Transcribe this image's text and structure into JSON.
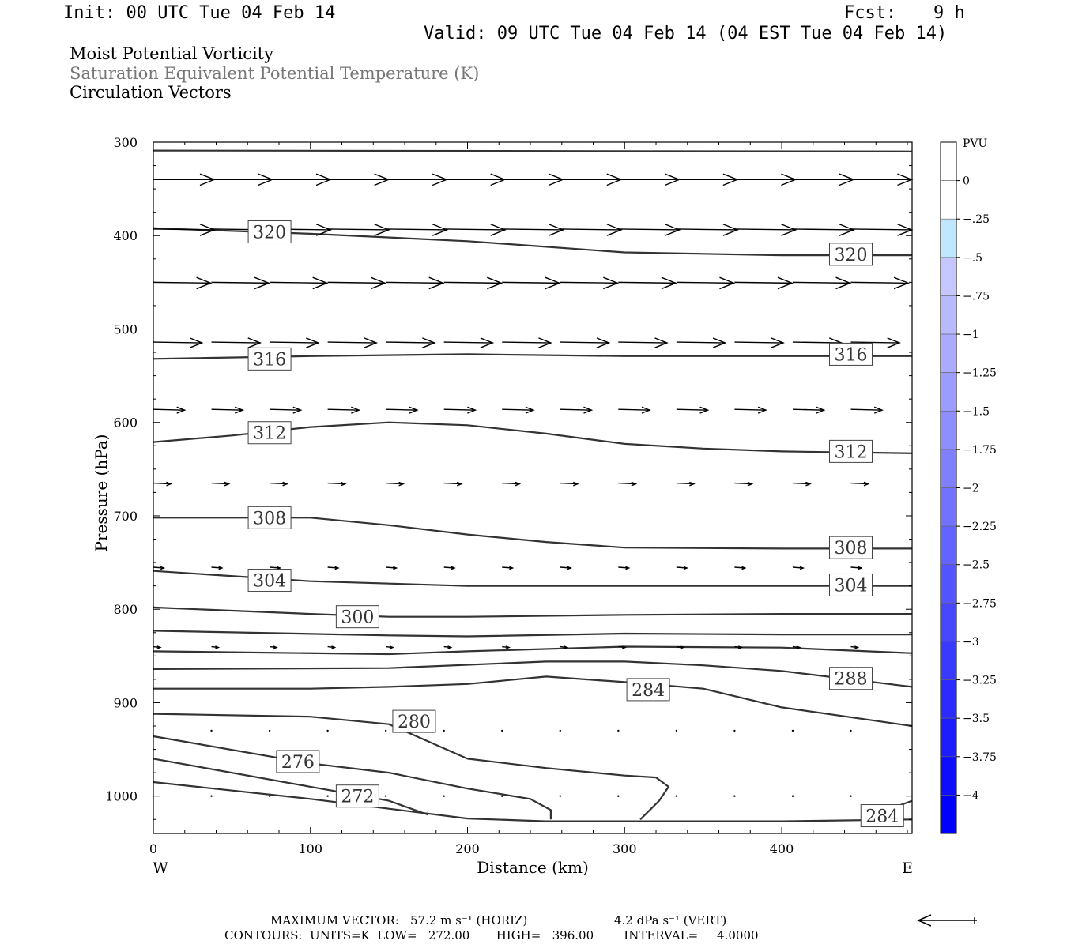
{
  "header": {
    "init": "Init: 00 UTC Tue 04 Feb 14",
    "fcst_label": "Fcst:",
    "fcst_value": "9 h",
    "valid": "Valid: 09 UTC Tue 04 Feb 14 (04 EST Tue 04 Feb 14)"
  },
  "titles": [
    "Moist Potential Vorticity",
    "Saturation Equivalent Potential Temperature (K)",
    "Circulation Vectors"
  ],
  "footer": {
    "max_vector_label": "MAXIMUM VECTOR:",
    "horiz": "57.2 m s⁻¹ (HORIZ)",
    "vert": "4.2 dPa s⁻¹ (VERT)",
    "contours": "CONTOURS:  UNITS=K  LOW=   272.00       HIGH=   396.00        INTERVAL=     4.0000"
  },
  "colors": {
    "contour": "#333333",
    "vector": "#000000",
    "colorbar_top": "#ffffff",
    "colorbar_bottom": "#0000ff"
  },
  "chart_data": {
    "type": "cross-section",
    "xlabel": "Distance (km)",
    "ylabel": "Pressure (hPa)",
    "xlim": [
      0,
      483
    ],
    "ylim": [
      300,
      1040
    ],
    "y_log_scale": false,
    "x_ticks": [
      0,
      100,
      200,
      300,
      400
    ],
    "y_ticks": [
      300,
      400,
      500,
      600,
      700,
      800,
      900,
      1000
    ],
    "x_end_labels": {
      "left": "W",
      "right": "E"
    },
    "colorbar": {
      "label": "PVU",
      "ticks": [
        "0",
        "-.25",
        "-.5",
        "-.75",
        "-1",
        "-1.25",
        "-1.5",
        "-1.75",
        "-2",
        "-2.25",
        "-2.5",
        "-2.75",
        "-3",
        "-3.25",
        "-3.5",
        "-3.75",
        "-4"
      ]
    },
    "contours": [
      {
        "points": [
          [
            0,
            309
          ],
          [
            483,
            310
          ]
        ]
      },
      {
        "points": [
          [
            0,
            392
          ],
          [
            100,
            398
          ],
          [
            200,
            406
          ],
          [
            300,
            418
          ],
          [
            400,
            421
          ],
          [
            483,
            421
          ]
        ],
        "label": "320",
        "label_at": [
          [
            74,
            396
          ],
          [
            444,
            420
          ]
        ]
      },
      {
        "points": [
          [
            0,
            532
          ],
          [
            100,
            529
          ],
          [
            200,
            527
          ],
          [
            300,
            529
          ],
          [
            400,
            529
          ],
          [
            483,
            529
          ]
        ],
        "label": "316",
        "label_at": [
          [
            74,
            532
          ],
          [
            444,
            527
          ]
        ]
      },
      {
        "points": [
          [
            0,
            621
          ],
          [
            50,
            614
          ],
          [
            100,
            605
          ],
          [
            150,
            600
          ],
          [
            200,
            603
          ],
          [
            250,
            612
          ],
          [
            300,
            623
          ],
          [
            350,
            628
          ],
          [
            400,
            631
          ],
          [
            483,
            633
          ]
        ],
        "label": "312",
        "label_at": [
          [
            74,
            611
          ],
          [
            444,
            631
          ]
        ]
      },
      {
        "points": [
          [
            0,
            702
          ],
          [
            100,
            702
          ],
          [
            150,
            710
          ],
          [
            200,
            720
          ],
          [
            250,
            728
          ],
          [
            300,
            734
          ],
          [
            400,
            735
          ],
          [
            483,
            735
          ]
        ],
        "label": "308",
        "label_at": [
          [
            74,
            702
          ],
          [
            444,
            734
          ]
        ]
      },
      {
        "points": [
          [
            0,
            759
          ],
          [
            100,
            770
          ],
          [
            200,
            775
          ],
          [
            300,
            775
          ],
          [
            400,
            775
          ],
          [
            483,
            775
          ]
        ],
        "label": "304",
        "label_at": [
          [
            74,
            769
          ],
          [
            444,
            774
          ]
        ]
      },
      {
        "points": [
          [
            0,
            798
          ],
          [
            100,
            805
          ],
          [
            150,
            808
          ],
          [
            200,
            808
          ],
          [
            300,
            806
          ],
          [
            400,
            805
          ],
          [
            483,
            805
          ]
        ],
        "label": "300",
        "label_at": [
          [
            130,
            808
          ]
        ]
      },
      {
        "points": [
          [
            0,
            823
          ],
          [
            150,
            828
          ],
          [
            200,
            829
          ],
          [
            300,
            826
          ],
          [
            400,
            827
          ],
          [
            483,
            827
          ]
        ]
      },
      {
        "points": [
          [
            0,
            845
          ],
          [
            150,
            848
          ],
          [
            200,
            845
          ],
          [
            300,
            840
          ],
          [
            400,
            841
          ],
          [
            483,
            847
          ]
        ]
      },
      {
        "points": [
          [
            0,
            864
          ],
          [
            150,
            863
          ],
          [
            250,
            856
          ],
          [
            300,
            856
          ],
          [
            350,
            860
          ],
          [
            400,
            866
          ],
          [
            483,
            883
          ]
        ],
        "label": "288",
        "label_at": [
          [
            444,
            874
          ]
        ]
      },
      {
        "points": [
          [
            0,
            885
          ],
          [
            100,
            885
          ],
          [
            150,
            883
          ],
          [
            200,
            880
          ],
          [
            250,
            872
          ],
          [
            300,
            878
          ],
          [
            350,
            885
          ],
          [
            400,
            905
          ],
          [
            483,
            925
          ]
        ],
        "label": "284",
        "label_at": [
          [
            315,
            886
          ]
        ]
      },
      {
        "points": [
          [
            0,
            912
          ],
          [
            100,
            915
          ],
          [
            150,
            923
          ],
          [
            200,
            960
          ],
          [
            250,
            970
          ],
          [
            300,
            978
          ],
          [
            320,
            980
          ],
          [
            328,
            990
          ],
          [
            322,
            1005
          ],
          [
            310,
            1025
          ]
        ],
        "label": "280",
        "label_at": [
          [
            166,
            920
          ]
        ]
      },
      {
        "points": [
          [
            0,
            936
          ],
          [
            100,
            965
          ],
          [
            150,
            975
          ],
          [
            200,
            992
          ],
          [
            240,
            1003
          ],
          [
            253,
            1015
          ],
          [
            253,
            1025
          ]
        ],
        "label": "276",
        "label_at": [
          [
            92,
            963
          ]
        ]
      },
      {
        "points": [
          [
            0,
            960
          ],
          [
            100,
            990
          ],
          [
            150,
            1005
          ],
          [
            175,
            1020
          ]
        ],
        "label": "272",
        "label_at": [
          [
            130,
            1000
          ]
        ]
      },
      {
        "points": [
          [
            0,
            985
          ],
          [
            100,
            1003
          ],
          [
            200,
            1024
          ],
          [
            250,
            1027
          ],
          [
            300,
            1027
          ],
          [
            400,
            1027
          ],
          [
            483,
            1025
          ]
        ]
      },
      {
        "points": [
          [
            470,
            1013
          ],
          [
            483,
            1005
          ]
        ],
        "label": "284",
        "label_at": [
          [
            464,
            1021
          ]
        ]
      }
    ],
    "vectors": {
      "levels": [
        {
          "p": 340,
          "x": [
            0,
            37,
            74,
            111,
            148,
            185,
            222,
            259,
            296,
            333,
            370,
            407,
            444
          ],
          "u": 35,
          "w": 0
        },
        {
          "p": 393,
          "x": [
            0,
            37,
            74,
            111,
            148,
            185,
            222,
            259,
            296,
            333,
            370,
            407,
            444
          ],
          "u": 35,
          "w": 1
        },
        {
          "p": 450,
          "x": [
            0,
            37,
            74,
            111,
            148,
            185,
            222,
            259,
            296,
            333,
            370,
            407,
            444
          ],
          "u": 33,
          "w": 1
        },
        {
          "p": 514,
          "x": [
            0,
            37,
            74,
            111,
            148,
            185,
            222,
            259,
            296,
            333,
            370,
            407,
            444
          ],
          "u": 28,
          "w": 1
        },
        {
          "p": 586,
          "x": [
            0,
            37,
            74,
            111,
            148,
            185,
            222,
            259,
            296,
            333,
            370,
            407,
            444
          ],
          "u": 18,
          "w": 1
        },
        {
          "p": 665,
          "x": [
            0,
            37,
            74,
            111,
            148,
            185,
            222,
            259,
            296,
            333,
            370,
            407,
            444
          ],
          "u": 10,
          "w": 1
        },
        {
          "p": 755,
          "x": [
            0,
            37,
            74,
            111,
            148,
            185,
            222,
            259,
            296,
            333,
            370,
            407,
            444
          ],
          "u": 6,
          "w": 1
        },
        {
          "p": 840,
          "x": [
            0,
            37,
            74,
            111,
            148,
            185,
            222,
            259,
            296,
            333,
            370,
            407,
            444
          ],
          "u": 4,
          "w": 1
        },
        {
          "p": 930,
          "x": [
            37,
            74,
            111,
            148,
            185,
            222,
            259,
            296,
            333,
            370,
            407,
            444
          ],
          "u": 1,
          "w": 2
        },
        {
          "p": 1000,
          "x": [
            37,
            74,
            111,
            148,
            185,
            222,
            259,
            296,
            333,
            370,
            407,
            444
          ],
          "u": 1,
          "w": 2
        }
      ]
    }
  }
}
